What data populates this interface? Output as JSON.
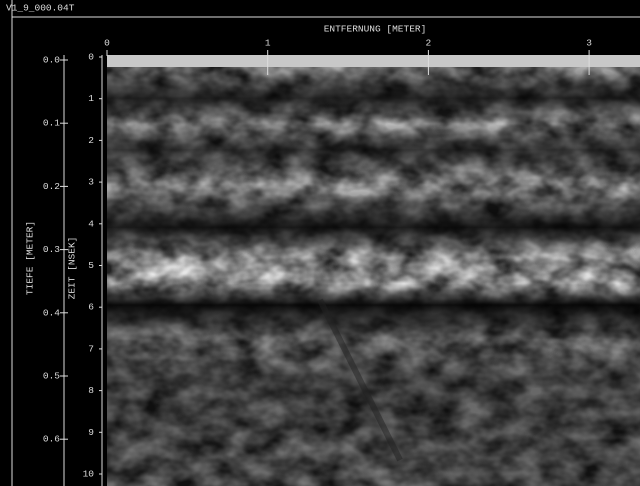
{
  "window": {
    "title": "V1_9_000.04T"
  },
  "plot": {
    "x_axis_label": "ENTFERNUNG [METER]",
    "x_ticks": [
      "0",
      "1",
      "2",
      "3"
    ],
    "depth_axis_label": "TIEFE [METER]",
    "depth_ticks": [
      "0.0",
      "0.1",
      "0.2",
      "0.3",
      "0.4",
      "0.5",
      "0.6"
    ],
    "time_axis_label": "ZEIT [NSEK]",
    "time_ticks": [
      "0",
      "1",
      "2",
      "3",
      "4",
      "5",
      "6",
      "7",
      "8",
      "9",
      "10"
    ]
  }
}
